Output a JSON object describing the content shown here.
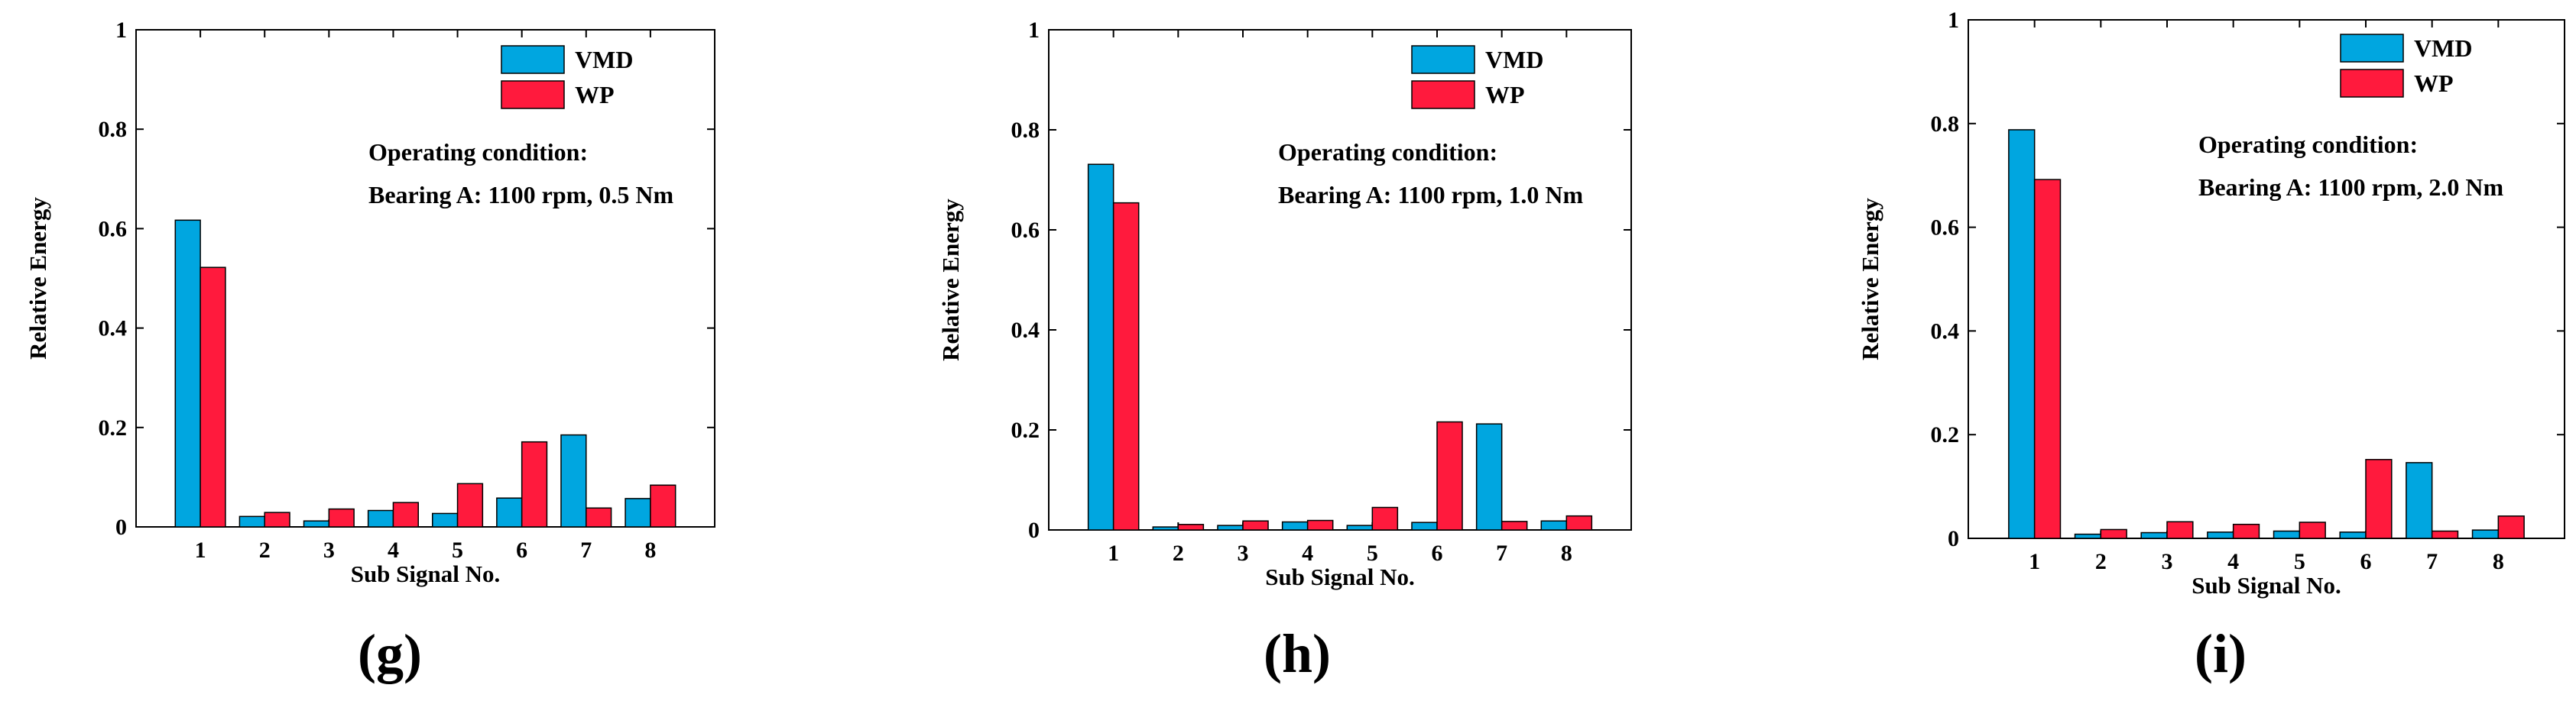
{
  "figure": {
    "series_colors": {
      "VMD": "#00a6e0",
      "WP": "#ff1a3d"
    }
  },
  "chart_data": [
    {
      "type": "bar",
      "panel_label": "(g)",
      "title": "",
      "xlabel": "Sub Signal No.",
      "ylabel": "Relative Energy",
      "categories": [
        "1",
        "2",
        "3",
        "4",
        "5",
        "6",
        "7",
        "8"
      ],
      "yticks": [
        "0",
        "0.2",
        "0.4",
        "0.6",
        "0.8",
        "1"
      ],
      "ylim": [
        0,
        1
      ],
      "legend_position": "top-right",
      "annotation": [
        "Operating condition:",
        "Bearing A: 1100 rpm, 0.5 Nm"
      ],
      "series": [
        {
          "name": "VMD",
          "values": [
            0.617,
            0.021,
            0.012,
            0.033,
            0.027,
            0.058,
            0.185,
            0.057
          ]
        },
        {
          "name": "WP",
          "values": [
            0.522,
            0.029,
            0.036,
            0.049,
            0.087,
            0.171,
            0.038,
            0.084
          ]
        }
      ]
    },
    {
      "type": "bar",
      "panel_label": "(h)",
      "title": "",
      "xlabel": "Sub Signal No.",
      "ylabel": "Relative Energy",
      "categories": [
        "1",
        "2",
        "3",
        "4",
        "5",
        "6",
        "7",
        "8"
      ],
      "yticks": [
        "0",
        "0.2",
        "0.4",
        "0.6",
        "0.8",
        "1"
      ],
      "ylim": [
        0,
        1
      ],
      "legend_position": "top-right",
      "annotation": [
        "Operating condition:",
        "Bearing A: 1100 rpm, 1.0 Nm"
      ],
      "series": [
        {
          "name": "VMD",
          "values": [
            0.731,
            0.006,
            0.009,
            0.016,
            0.009,
            0.015,
            0.212,
            0.018
          ]
        },
        {
          "name": "WP",
          "values": [
            0.654,
            0.011,
            0.018,
            0.019,
            0.045,
            0.216,
            0.017,
            0.028
          ]
        }
      ]
    },
    {
      "type": "bar",
      "panel_label": "(i)",
      "title": "",
      "xlabel": "Sub Signal No.",
      "ylabel": "Relative Energy",
      "categories": [
        "1",
        "2",
        "3",
        "4",
        "5",
        "6",
        "7",
        "8"
      ],
      "yticks": [
        "0",
        "0.2",
        "0.4",
        "0.6",
        "0.8",
        "1"
      ],
      "ylim": [
        0,
        1
      ],
      "legend_position": "top-right",
      "annotation": [
        "Operating condition:",
        "Bearing A: 1100 rpm, 2.0 Nm"
      ],
      "series": [
        {
          "name": "VMD",
          "values": [
            0.788,
            0.008,
            0.011,
            0.012,
            0.014,
            0.012,
            0.146,
            0.016
          ]
        },
        {
          "name": "WP",
          "values": [
            0.692,
            0.017,
            0.032,
            0.027,
            0.031,
            0.152,
            0.014,
            0.043
          ]
        }
      ]
    }
  ]
}
